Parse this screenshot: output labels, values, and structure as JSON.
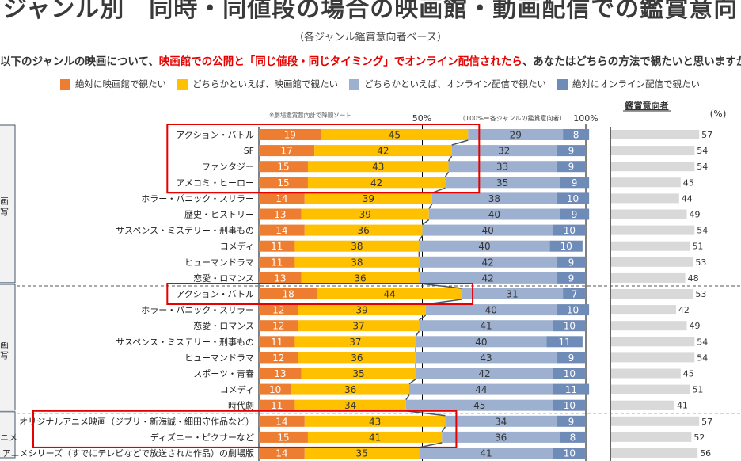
{
  "header": {
    "title": "ジャンル別　同時・同値段の場合の映画館・動画配信での鑑賞意向",
    "subtitle": "（各ジャンル鑑賞意向者ベース）",
    "question_parts": [
      {
        "text": "以下のジャンルの映画について、",
        "highlight": false
      },
      {
        "text": "映画館での公開と「同じ値段・同じタイミング」でオンライン配信されたら",
        "highlight": true
      },
      {
        "text": "、あなたはどちらの方法で観たいと思いますか",
        "highlight": false
      }
    ]
  },
  "colors": {
    "absolute_theater": "#ED7D31",
    "rather_theater": "#FFC000",
    "rather_online": "#9DB0CF",
    "absolute_online": "#6F8CB8",
    "interest_bar": "#D9D9D9",
    "highlight_box": "#E60000",
    "connector": "#44546A"
  },
  "chart_data": [
    {
      "type": "bar",
      "orientation": "horizontal",
      "stacked": true,
      "note": "※劇場鑑賞意向計で降順ソート",
      "scale_note": "（100%＝各ジャンルの鑑賞意向者）",
      "xticks": [
        "50%",
        "100%"
      ],
      "xlim": [
        0,
        100
      ],
      "legend": [
        "絶対に映画館で観たい",
        "どちらかといえば、映画館で観たい",
        "どちらかといえば、オンライン配信で観たい",
        "絶対にオンライン配信で観たい"
      ],
      "legend_placement": "top",
      "groups": [
        {
          "label_fragment": [
            "画",
            "写"
          ],
          "categories": [
            "アクション・バトル",
            "SF",
            "ファンタジー",
            "アメコミ・ヒーロー",
            "ホラー・パニック・スリラー",
            "歴史・ヒストリー",
            "サスペンス・ミステリー・刑事もの",
            "コメディ",
            "ヒューマンドラマ",
            "恋愛・ロマンス"
          ],
          "highlighted": [
            0,
            1,
            2,
            3
          ],
          "series": [
            {
              "name": "絶対に映画館で観たい",
              "values": [
                19,
                17,
                15,
                15,
                14,
                13,
                14,
                11,
                11,
                13
              ]
            },
            {
              "name": "どちらかといえば、映画館で観たい",
              "values": [
                45,
                42,
                43,
                42,
                39,
                39,
                36,
                38,
                38,
                36
              ]
            },
            {
              "name": "どちらかといえば、オンライン配信で観たい",
              "values": [
                29,
                32,
                33,
                35,
                38,
                40,
                40,
                40,
                42,
                42
              ]
            },
            {
              "name": "絶対にオンライン配信で観たい",
              "values": [
                8,
                9,
                9,
                9,
                10,
                9,
                10,
                10,
                9,
                9
              ]
            }
          ],
          "interest": [
            57,
            54,
            54,
            45,
            44,
            49,
            54,
            51,
            53,
            48
          ]
        },
        {
          "label_fragment": [
            "画",
            "写"
          ],
          "categories": [
            "アクション・バトル",
            "ホラー・パニック・スリラー",
            "恋愛・ロマンス",
            "サスペンス・ミステリー・刑事もの",
            "ヒューマンドラマ",
            "スポーツ・青春",
            "コメディ",
            "時代劇"
          ],
          "highlighted": [
            0
          ],
          "series": [
            {
              "name": "絶対に映画館で観たい",
              "values": [
                18,
                12,
                12,
                11,
                12,
                13,
                10,
                11
              ]
            },
            {
              "name": "どちらかといえば、映画館で観たい",
              "values": [
                44,
                39,
                37,
                37,
                36,
                35,
                36,
                34
              ]
            },
            {
              "name": "どちらかといえば、オンライン配信で観たい",
              "values": [
                31,
                40,
                41,
                40,
                43,
                42,
                44,
                45
              ]
            },
            {
              "name": "絶対にオンライン配信で観たい",
              "values": [
                7,
                10,
                10,
                11,
                9,
                10,
                11,
                10
              ]
            }
          ],
          "interest": [
            53,
            42,
            49,
            54,
            54,
            45,
            51,
            41
          ]
        },
        {
          "label_fragment": [
            "ニメ"
          ],
          "categories": [
            "オリジナルアニメ映画（ジブリ・新海誠・細田守作品など）",
            "ディズニー・ピクサーなど",
            "アニメシリーズ（すでにテレビなどで放送された作品）の劇場版"
          ],
          "highlighted": [
            0,
            1
          ],
          "series": [
            {
              "name": "絶対に映画館で観たい",
              "values": [
                14,
                15,
                14
              ]
            },
            {
              "name": "どちらかといえば、映画館で観たい",
              "values": [
                43,
                41,
                35
              ]
            },
            {
              "name": "どちらかといえば、オンライン配信で観たい",
              "values": [
                34,
                36,
                41
              ]
            },
            {
              "name": "絶対にオンライン配信で観たい",
              "values": [
                9,
                8,
                10
              ]
            }
          ],
          "interest": [
            57,
            52,
            56
          ]
        }
      ]
    },
    {
      "type": "bar",
      "orientation": "horizontal",
      "title": "鑑賞意向者",
      "unit": "(%)"
    }
  ]
}
